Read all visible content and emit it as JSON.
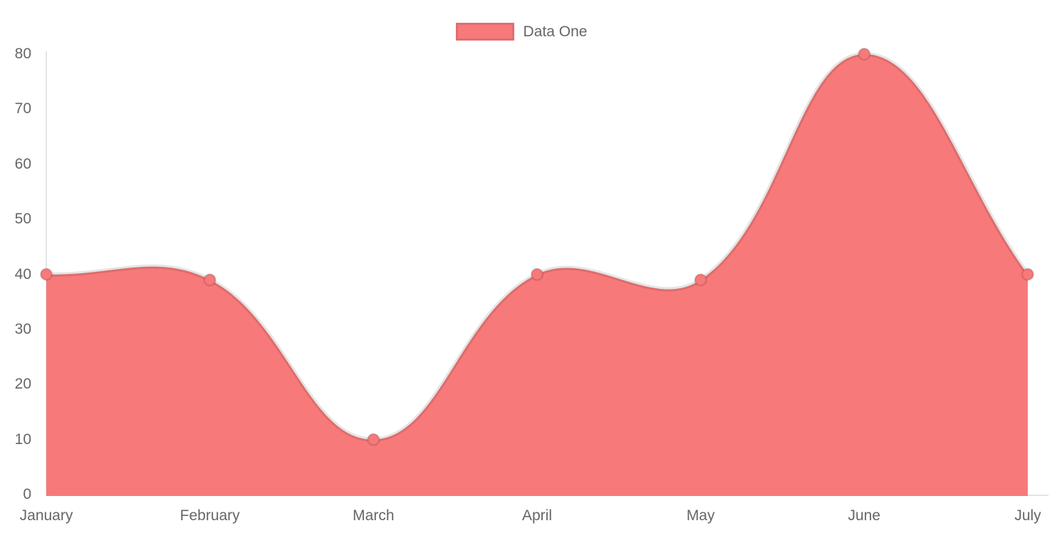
{
  "chart_data": {
    "type": "area",
    "title": "",
    "categories": [
      "January",
      "February",
      "March",
      "April",
      "May",
      "June",
      "July"
    ],
    "series": [
      {
        "name": "Data One",
        "values": [
          40,
          39,
          10,
          40,
          39,
          80,
          40
        ],
        "fill_color": "#f87979",
        "line_color": "rgba(0, 0, 0, 0.1)",
        "point_fill_color": "#f87979",
        "point_border_color": "rgba(0, 0, 0, 0.12)"
      }
    ],
    "xlabel": "",
    "ylabel": "",
    "ylim": [
      0,
      80
    ],
    "y_ticks": [
      0,
      10,
      20,
      30,
      40,
      50,
      60,
      70,
      80
    ],
    "grid": false,
    "legend_position": "top",
    "curve_style": "bezier-tension-0.4"
  },
  "legend": {
    "items": [
      {
        "label": "Data One",
        "swatch_color": "#f87979"
      }
    ]
  },
  "colors": {
    "background": "#ffffff",
    "axis_line": "rgba(0, 0, 0, 0.1)",
    "tick_text": "#666666",
    "legend_text": "#666666",
    "legend_box_border": "rgba(0, 0, 0, 0.09)"
  }
}
